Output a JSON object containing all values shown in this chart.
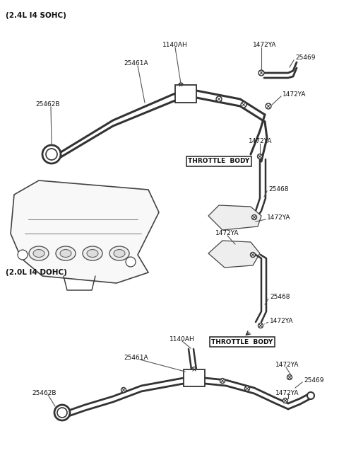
{
  "bg_color": "#ffffff",
  "line_color": "#333333",
  "fig_width": 4.8,
  "fig_height": 6.57,
  "dpi": 100,
  "labels": {
    "top_section": "(2.4L I4 SOHC)",
    "bottom_section": "(2.0L I4 DOHC)",
    "throttle_body_1": "THROTTLE  BODY",
    "throttle_body_2": "THROTTLE  BODY",
    "1140AH_top": "1140AH",
    "1472YA_top_r1": "1472YA",
    "25469_top": "25469",
    "1472YA_top_r2": "1472YA",
    "25461A_top": "25461A",
    "25462B_top": "25462B",
    "1472YA_sohc_tb": "1472YA",
    "25468_sohc": "25468",
    "1472YA_sohc_bot": "1472YA",
    "1472YA_dohc_top": "1472YA",
    "25468_dohc": "25468",
    "1472YA_dohc_mid": "1472YA",
    "1140AH_bot": "1140AH",
    "25461A_bot": "25461A",
    "25462B_bot": "25462B",
    "1472YA_bot_r1": "1472YA",
    "25469_bot": "25469",
    "1472YA_bot_r2": "1472YA"
  }
}
